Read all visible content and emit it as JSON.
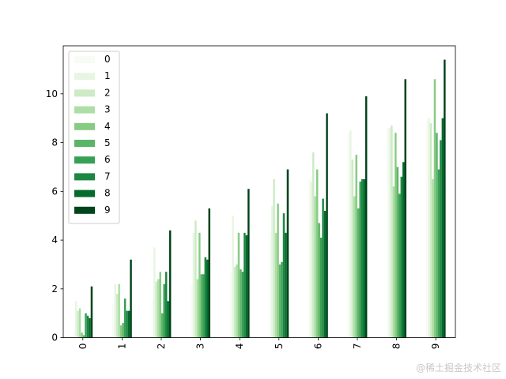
{
  "chart_data": {
    "type": "bar",
    "categories": [
      "0",
      "1",
      "2",
      "3",
      "4",
      "5",
      "6",
      "7",
      "8",
      "9"
    ],
    "series": [
      {
        "name": "0",
        "color": "#f7fcf5",
        "values": [
          0.3,
          1.4,
          1.5,
          2.2,
          2.7,
          4.3,
          6.5,
          8.4,
          8.6,
          8.9
        ]
      },
      {
        "name": "1",
        "color": "#e7f5e2",
        "values": [
          1.5,
          2.2,
          3.7,
          4.3,
          5.0,
          5.4,
          6.4,
          8.5,
          8.6,
          9.0
        ]
      },
      {
        "name": "2",
        "color": "#cdebc6",
        "values": [
          1.1,
          1.8,
          2.3,
          4.8,
          2.9,
          6.5,
          7.6,
          7.3,
          8.7,
          8.8
        ]
      },
      {
        "name": "3",
        "color": "#acdea6",
        "values": [
          1.2,
          2.2,
          2.4,
          2.4,
          3.0,
          4.3,
          5.8,
          5.8,
          6.2,
          6.5
        ]
      },
      {
        "name": "4",
        "color": "#88cb83",
        "values": [
          0.2,
          0.5,
          2.7,
          4.3,
          4.3,
          5.5,
          6.9,
          7.5,
          8.4,
          10.6
        ]
      },
      {
        "name": "5",
        "color": "#5cb567",
        "values": [
          0.1,
          0.6,
          1.0,
          2.6,
          2.8,
          3.0,
          4.7,
          5.3,
          7.0,
          8.4
        ]
      },
      {
        "name": "6",
        "color": "#37a055",
        "values": [
          1.0,
          1.6,
          2.2,
          2.6,
          2.7,
          3.1,
          4.1,
          6.4,
          5.9,
          6.9
        ]
      },
      {
        "name": "7",
        "color": "#1d8641",
        "values": [
          0.9,
          1.1,
          2.7,
          3.3,
          4.3,
          5.1,
          5.7,
          6.5,
          6.6,
          8.1
        ]
      },
      {
        "name": "8",
        "color": "#036b2b",
        "values": [
          0.8,
          1.1,
          1.5,
          3.2,
          4.2,
          4.3,
          5.2,
          6.5,
          7.2,
          9.0
        ]
      },
      {
        "name": "9",
        "color": "#00441b",
        "values": [
          2.1,
          3.2,
          4.4,
          5.3,
          6.1,
          6.9,
          9.2,
          9.9,
          10.6,
          11.4
        ]
      }
    ],
    "ylim": [
      0,
      11.97
    ],
    "yticks": [
      0,
      2,
      4,
      6,
      8,
      10
    ],
    "xtick_rotation": 90,
    "grid": false,
    "legend": "upper-left",
    "title": "",
    "xlabel": "",
    "ylabel": ""
  },
  "watermark": "@稀土掘金技术社区"
}
